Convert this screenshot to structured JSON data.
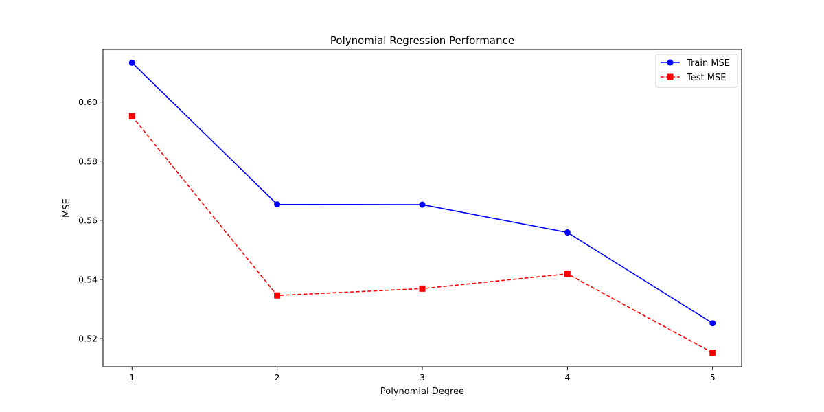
{
  "chart_data": {
    "type": "line",
    "title": "Polynomial Regression Performance",
    "xlabel": "Polynomial Degree",
    "ylabel": "MSE",
    "x": [
      1,
      2,
      3,
      4,
      5
    ],
    "x_ticks": [
      "1",
      "2",
      "3",
      "4",
      "5"
    ],
    "y_ticks": [
      "0.52",
      "0.54",
      "0.56",
      "0.58",
      "0.60"
    ],
    "y_tick_values": [
      0.52,
      0.54,
      0.56,
      0.58,
      0.6
    ],
    "xlim": [
      0.8,
      5.2
    ],
    "ylim": [
      0.5105,
      0.6178
    ],
    "grid": false,
    "legend_position": "top-right",
    "series": [
      {
        "name": "Train MSE",
        "values": [
          0.6133,
          0.5654,
          0.5653,
          0.5559,
          0.5252
        ],
        "color": "#0000ff",
        "marker": "circle",
        "line_style": "solid"
      },
      {
        "name": "Test MSE",
        "values": [
          0.5952,
          0.5346,
          0.5369,
          0.5419,
          0.5152
        ],
        "color": "#ff0000",
        "marker": "square",
        "line_style": "dashed"
      }
    ]
  }
}
